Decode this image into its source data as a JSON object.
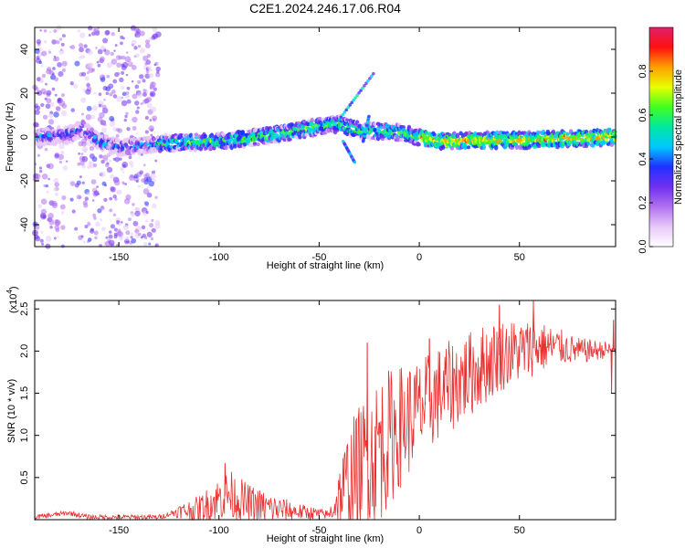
{
  "title": "C2E1.2024.246.17.06.R04",
  "chart_data": [
    {
      "type": "heatmap",
      "xlabel": "Height of straight line (km)",
      "ylabel": "Frequency (Hz)",
      "xlim": [
        -192,
        98
      ],
      "ylim": [
        -50,
        50
      ],
      "xticks": [
        -150,
        -100,
        -50,
        0,
        50
      ],
      "yticks": [
        -40,
        -20,
        0,
        20,
        40
      ],
      "colorbar": {
        "label": "Normalized spectral amplitude",
        "range": [
          0.0,
          1.0
        ],
        "ticks": [
          0.0,
          0.2,
          0.4,
          0.6,
          0.8
        ],
        "colors": [
          "#ffffff",
          "#e8c8f8",
          "#b070f0",
          "#7030f0",
          "#2030ff",
          "#00c8ff",
          "#00e8a0",
          "#40ff20",
          "#e8ff00",
          "#ffa000",
          "#ff1010",
          "#e0206a"
        ]
      },
      "ridge": [
        {
          "x": -190,
          "f": 0.0
        },
        {
          "x": -175,
          "f": 1.0
        },
        {
          "x": -168,
          "f": 4.0
        },
        {
          "x": -160,
          "f": -2.0
        },
        {
          "x": -150,
          "f": -5.0
        },
        {
          "x": -130,
          "f": -3.0
        },
        {
          "x": -100,
          "f": -2.0
        },
        {
          "x": -80,
          "f": 0.0
        },
        {
          "x": -60,
          "f": 3.0
        },
        {
          "x": -50,
          "f": 5.0
        },
        {
          "x": -40,
          "f": 6.0
        },
        {
          "x": -30,
          "f": 3.0
        },
        {
          "x": -20,
          "f": 2.5
        },
        {
          "x": -10,
          "f": 2.0
        },
        {
          "x": 0,
          "f": 0.0
        },
        {
          "x": 10,
          "f": -2.0
        },
        {
          "x": 30,
          "f": -1.5
        },
        {
          "x": 50,
          "f": -1.5
        },
        {
          "x": 70,
          "f": -1.0
        },
        {
          "x": 98,
          "f": 0.0
        }
      ],
      "streaks": [
        {
          "x0": -40,
          "f0": 8,
          "x1": -22,
          "f1": 30
        },
        {
          "x0": -38,
          "f0": -2,
          "x1": -32,
          "f1": -12
        },
        {
          "x0": -28,
          "f0": -2,
          "x1": -25,
          "f1": 10
        }
      ]
    },
    {
      "type": "line",
      "xlabel": "Height of straight line (km)",
      "ylabel": "SNR (10 * v/v)",
      "y_scale_label": "(x10",
      "y_scale_exponent": "4",
      "xlim": [
        -192,
        98
      ],
      "ylim": [
        0,
        2.6
      ],
      "xticks": [
        -150,
        -100,
        -50,
        0,
        50
      ],
      "yticks": [
        0.5,
        1.0,
        1.5,
        2.0,
        2.5
      ],
      "ytick_labels": [
        "0.5",
        "1.0",
        "1.5",
        "2.0",
        "2.5"
      ],
      "color": "#e83030",
      "envelope": [
        {
          "x": -192,
          "y": 0.03
        },
        {
          "x": -175,
          "y": 0.08
        },
        {
          "x": -165,
          "y": 0.03
        },
        {
          "x": -130,
          "y": 0.03
        },
        {
          "x": -120,
          "y": 0.1
        },
        {
          "x": -110,
          "y": 0.12
        },
        {
          "x": -100,
          "y": 0.25
        },
        {
          "x": -95,
          "y": 0.3
        },
        {
          "x": -85,
          "y": 0.18
        },
        {
          "x": -70,
          "y": 0.12
        },
        {
          "x": -55,
          "y": 0.08
        },
        {
          "x": -45,
          "y": 0.06
        },
        {
          "x": -38,
          "y": 0.35
        },
        {
          "x": -30,
          "y": 0.6
        },
        {
          "x": -22,
          "y": 0.8
        },
        {
          "x": -10,
          "y": 1.1
        },
        {
          "x": 0,
          "y": 1.3
        },
        {
          "x": 10,
          "y": 1.5
        },
        {
          "x": 20,
          "y": 1.65
        },
        {
          "x": 30,
          "y": 1.8
        },
        {
          "x": 40,
          "y": 1.95
        },
        {
          "x": 50,
          "y": 2.0
        },
        {
          "x": 60,
          "y": 2.05
        },
        {
          "x": 70,
          "y": 2.05
        },
        {
          "x": 80,
          "y": 2.0
        },
        {
          "x": 98,
          "y": 2.02
        }
      ],
      "noise": [
        {
          "x": -192,
          "a": 0.03
        },
        {
          "x": -125,
          "a": 0.03
        },
        {
          "x": -120,
          "a": 0.08
        },
        {
          "x": -95,
          "a": 0.3
        },
        {
          "x": -60,
          "a": 0.1
        },
        {
          "x": -45,
          "a": 0.05
        },
        {
          "x": -35,
          "a": 0.7
        },
        {
          "x": -20,
          "a": 0.9
        },
        {
          "x": 0,
          "a": 0.6
        },
        {
          "x": 30,
          "a": 0.5
        },
        {
          "x": 55,
          "a": 0.35
        },
        {
          "x": 75,
          "a": 0.18
        },
        {
          "x": 98,
          "a": 0.08
        }
      ],
      "peaks": [
        {
          "x": -97,
          "y": 0.67
        },
        {
          "x": -26,
          "y": 2.1
        },
        {
          "x": -20,
          "y": 1.15
        },
        {
          "x": 3,
          "y": 1.4
        },
        {
          "x": 5,
          "y": 2.15
        },
        {
          "x": 40,
          "y": 2.55
        },
        {
          "x": 57,
          "y": 2.6
        },
        {
          "x": 97,
          "y": 2.37
        },
        {
          "x": 96,
          "y": 1.5
        }
      ]
    }
  ]
}
